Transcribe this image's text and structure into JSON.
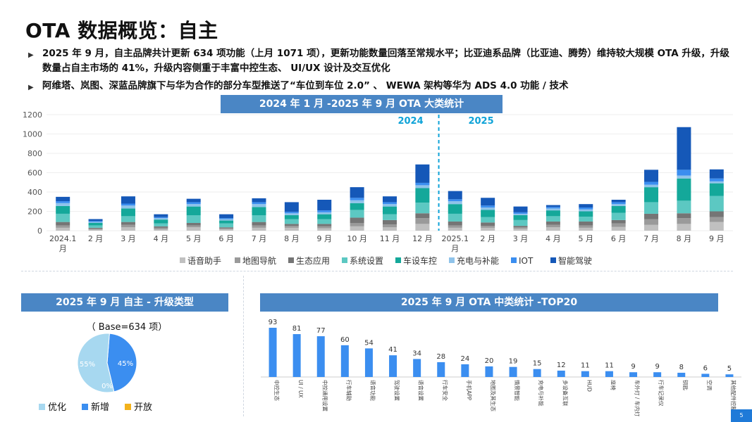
{
  "title": "OTA 数据概览：自主",
  "bullets": [
    "2025 年 9 月，自主品牌共计更新 634 项功能（上月 1071 项），更新功能数量回落至常规水平；比亚迪系品牌（比亚迪、腾势）维持较大规模 OTA 升级，升级数量占自主市场的 41%，升级内容侧重于丰富中控生态、 UI/UX 设计及交互优化",
    "阿维塔、岚图、深蓝品牌旗下与华为合作的部分车型推送了“车位到车位 2.0” 、 WEWA  架构等华为 ADS 4.0  功能 / 技术"
  ],
  "main_chart_title": "2024 年 1 月 -2025 年 9 月 OTA 大类统计",
  "year_2024": "2024",
  "year_2025": "2025",
  "pie_title": "2025 年 9 月 自主 - 升级类型",
  "bar_title": "2025 年 9 月  OTA 中类统计 -TOP20",
  "page_number": "5",
  "colors": {
    "语音助手": "#c0c0c0",
    "地图导航": "#9a9a9a",
    "生态应用": "#757575",
    "系统设置": "#5cc8c2",
    "车设车控": "#14a89a",
    "充电与补能": "#8fc3ea",
    "IOT": "#3b8ef0",
    "智能驾驶": "#1558b8",
    "pie_opt": "#a7d8f0",
    "pie_new": "#3b8ef0",
    "pie_open": "#f3b21c",
    "bar": "#3b8ef0",
    "divider": "#0fa3d8"
  },
  "chart_data": [
    {
      "type": "bar",
      "stacked": true,
      "categories": [
        "2024.1 月",
        "2 月",
        "3 月",
        "4 月",
        "5 月",
        "6 月",
        "7 月",
        "8 月",
        "9 月",
        "10 月",
        "11 月",
        "12 月",
        "2025.1 月",
        "2 月",
        "3 月",
        "4 月",
        "5 月",
        "6 月",
        "7 月",
        "8 月",
        "9 月"
      ],
      "ylim": [
        0,
        1200
      ],
      "yticks": [
        0,
        200,
        400,
        600,
        800,
        1000,
        1200
      ],
      "legend_position": "bottom",
      "series": [
        {
          "name": "语音助手",
          "values": [
            30,
            10,
            35,
            15,
            35,
            15,
            30,
            30,
            25,
            45,
            35,
            70,
            30,
            30,
            20,
            35,
            30,
            40,
            60,
            70,
            90
          ]
        },
        {
          "name": "地图导航",
          "values": [
            25,
            10,
            25,
            15,
            20,
            10,
            25,
            20,
            20,
            35,
            30,
            60,
            25,
            20,
            15,
            25,
            25,
            35,
            60,
            60,
            50
          ]
        },
        {
          "name": "生态应用",
          "values": [
            35,
            10,
            30,
            15,
            25,
            10,
            35,
            20,
            25,
            55,
            45,
            50,
            40,
            35,
            15,
            35,
            40,
            35,
            55,
            50,
            60
          ]
        },
        {
          "name": "系统设置",
          "values": [
            85,
            25,
            60,
            30,
            80,
            40,
            70,
            50,
            50,
            80,
            60,
            110,
            80,
            55,
            60,
            55,
            50,
            75,
            120,
            130,
            160
          ]
        },
        {
          "name": "车设车控",
          "values": [
            80,
            25,
            80,
            40,
            90,
            30,
            85,
            40,
            50,
            70,
            80,
            150,
            100,
            75,
            50,
            60,
            55,
            70,
            155,
            230,
            130
          ]
        },
        {
          "name": "充电与补能",
          "values": [
            30,
            10,
            30,
            15,
            25,
            15,
            30,
            20,
            20,
            30,
            25,
            30,
            30,
            25,
            15,
            20,
            20,
            20,
            25,
            30,
            20
          ]
        },
        {
          "name": "IOT",
          "values": [
            20,
            10,
            20,
            10,
            20,
            10,
            20,
            15,
            20,
            25,
            20,
            25,
            20,
            20,
            15,
            15,
            20,
            20,
            30,
            60,
            30
          ]
        },
        {
          "name": "智能驾驶",
          "values": [
            45,
            20,
            75,
            30,
            35,
            40,
            40,
            100,
            110,
            110,
            60,
            190,
            85,
            80,
            60,
            20,
            35,
            25,
            125,
            441,
            94
          ]
        }
      ]
    },
    {
      "type": "pie",
      "base_label": "（ Base=634 项）",
      "labels": [
        "优化",
        "新增",
        "开放"
      ],
      "values": [
        55,
        45,
        0
      ],
      "value_labels": [
        "55%",
        "45%",
        "0%"
      ]
    },
    {
      "type": "bar",
      "categories": [
        "中控生态",
        "UI / UX",
        "中控通用设置",
        "行车辅助",
        "语音功能",
        "驾驶设置",
        "语音设置",
        "行车安全",
        "手机APP",
        "地图及其生态",
        "情景智能",
        "充电与补能",
        "多设备互联",
        "HUD",
        "座椅",
        "车外灯 / 车内灯",
        "行车记录仪",
        "钥匙",
        "空调",
        "其他配件控制及服务"
      ],
      "values": [
        93,
        81,
        77,
        60,
        54,
        41,
        34,
        28,
        24,
        20,
        19,
        15,
        12,
        11,
        11,
        9,
        9,
        8,
        6,
        5
      ]
    }
  ]
}
